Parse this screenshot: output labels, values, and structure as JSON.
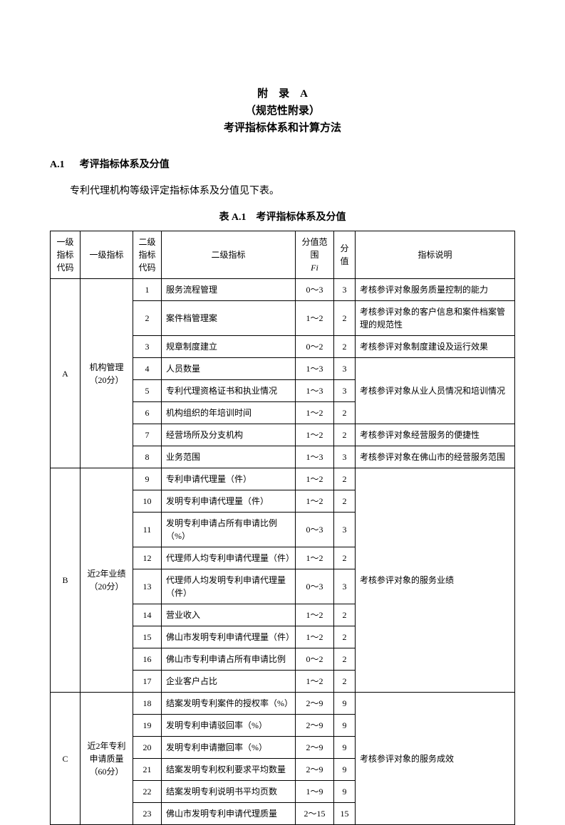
{
  "header": {
    "line1": "附　录　A",
    "line2": "（规范性附录）",
    "line3": "考评指标体系和计算方法"
  },
  "section": {
    "number": "A.1",
    "title": "考评指标体系及分值"
  },
  "intro": "专利代理机构等级评定指标体系及分值见下表。",
  "table_caption": "表 A.1　考评指标体系及分值",
  "columns": {
    "l1code": "一级指标代码",
    "l1name": "一级指标",
    "l2code": "二级指标代码",
    "l2name": "二级指标",
    "range_label": "分值范围",
    "range_symbol": "Fi",
    "score": "分值",
    "desc": "指标说明"
  },
  "groups": [
    {
      "code": "A",
      "name": "机构管理（20分）",
      "rows": [
        {
          "idx": "1",
          "name": "服务流程管理",
          "range": "0～3",
          "score": "3",
          "desc": "考核参评对象服务质量控制的能力",
          "desc_span": 1
        },
        {
          "idx": "2",
          "name": "案件档管理案",
          "range": "1～2",
          "score": "2",
          "desc": "考核参评对象的客户信息和案件档案管理的规范性",
          "desc_span": 1
        },
        {
          "idx": "3",
          "name": "规章制度建立",
          "range": "0～2",
          "score": "2",
          "desc": "考核参评对象制度建设及运行效果",
          "desc_span": 1
        },
        {
          "idx": "4",
          "name": "人员数量",
          "range": "1～3",
          "score": "3",
          "desc": "考核参评对象从业人员情况和培训情况",
          "desc_span": 3
        },
        {
          "idx": "5",
          "name": "专利代理资格证书和执业情况",
          "range": "1～3",
          "score": "3"
        },
        {
          "idx": "6",
          "name": "机构组织的年培训时间",
          "range": "1～2",
          "score": "2"
        },
        {
          "idx": "7",
          "name": "经营场所及分支机构",
          "range": "1～2",
          "score": "2",
          "desc": "考核参评对象经营服务的便捷性",
          "desc_span": 1
        },
        {
          "idx": "8",
          "name": "业务范围",
          "range": "1～3",
          "score": "3",
          "desc": "考核参评对象在佛山市的经营服务范围",
          "desc_span": 1
        }
      ]
    },
    {
      "code": "B",
      "name": "近2年业绩（20分）",
      "rows": [
        {
          "idx": "9",
          "name": "专利申请代理量（件）",
          "range": "1～2",
          "score": "2",
          "desc": "考核参评对象的服务业绩",
          "desc_span": 9
        },
        {
          "idx": "10",
          "name": "发明专利申请代理量（件）",
          "range": "1～2",
          "score": "2"
        },
        {
          "idx": "11",
          "name": "发明专利申请占所有申请比例（%）",
          "range": "0～3",
          "score": "3"
        },
        {
          "idx": "12",
          "name": "代理师人均专利申请代理量（件）",
          "range": "1～2",
          "score": "2"
        },
        {
          "idx": "13",
          "name": "代理师人均发明专利申请代理量（件）",
          "range": "0～3",
          "score": "3"
        },
        {
          "idx": "14",
          "name": "营业收入",
          "range": "1～2",
          "score": "2"
        },
        {
          "idx": "15",
          "name": "佛山市发明专利申请代理量（件）",
          "range": "1～2",
          "score": "2"
        },
        {
          "idx": "16",
          "name": "佛山市专利申请占所有申请比例",
          "range": "0～2",
          "score": "2"
        },
        {
          "idx": "17",
          "name": "企业客户占比",
          "range": "1～2",
          "score": "2"
        }
      ]
    },
    {
      "code": "C",
      "name": "近2年专利申请质量（60分）",
      "rows": [
        {
          "idx": "18",
          "name": "结案发明专利案件的授权率（%）",
          "range": "2～9",
          "score": "9",
          "desc": "考核参评对象的服务成效",
          "desc_span": 6
        },
        {
          "idx": "19",
          "name": "发明专利申请驳回率（%）",
          "range": "2～9",
          "score": "9"
        },
        {
          "idx": "20",
          "name": "发明专利申请撤回率（%）",
          "range": "2～9",
          "score": "9"
        },
        {
          "idx": "21",
          "name": "结案发明专利权利要求平均数量",
          "range": "2～9",
          "score": "9"
        },
        {
          "idx": "22",
          "name": "结案发明专利说明书平均页数",
          "range": "1～9",
          "score": "9"
        },
        {
          "idx": "23",
          "name": "佛山市发明专利申请代理质量",
          "range": "2～15",
          "score": "15"
        }
      ]
    }
  ]
}
